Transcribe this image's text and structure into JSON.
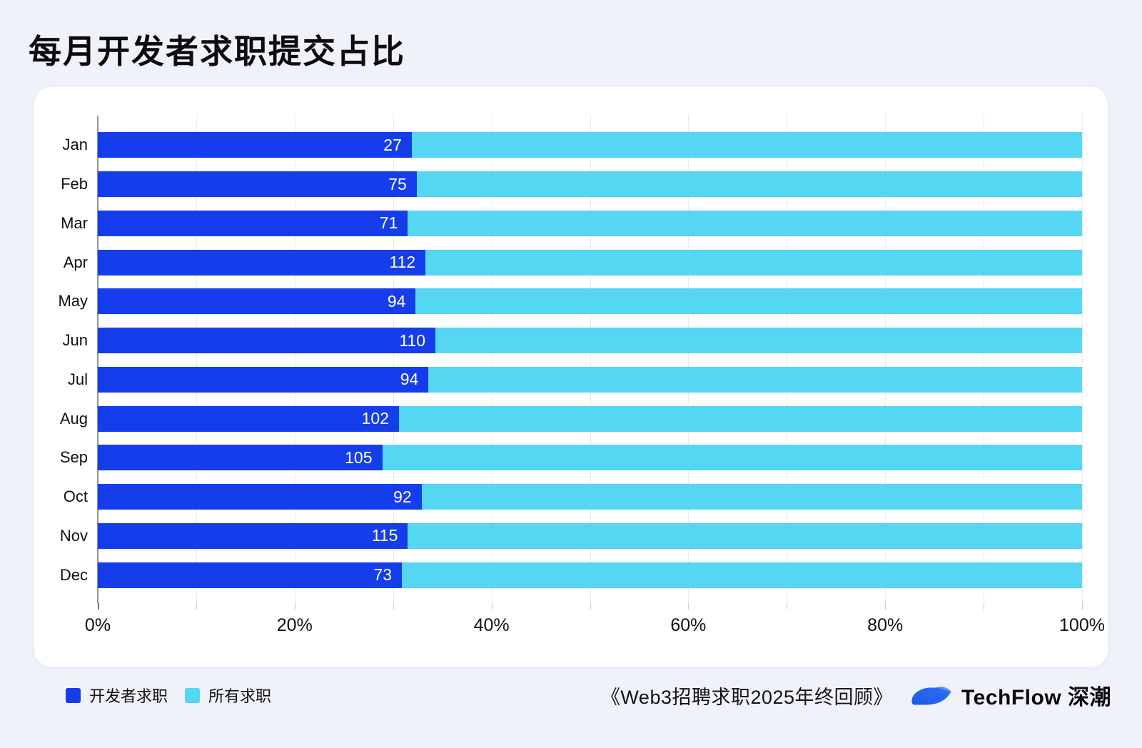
{
  "page": {
    "title": "每月开发者求职提交占比",
    "background_color": "#f0f2f9",
    "card_color": "#ffffff"
  },
  "chart_data": {
    "type": "bar",
    "orientation": "horizontal",
    "stacked_to_100_percent": true,
    "title": "每月开发者求职提交占比",
    "categories": [
      "Jan",
      "Feb",
      "Mar",
      "Apr",
      "May",
      "Jun",
      "Jul",
      "Aug",
      "Sep",
      "Oct",
      "Nov",
      "Dec"
    ],
    "series": [
      {
        "name": "开发者求职",
        "color": "#163deb",
        "counts": [
          27,
          75,
          71,
          112,
          94,
          110,
          94,
          102,
          105,
          92,
          115,
          73
        ],
        "percent_of_total": [
          31.9,
          32.4,
          31.5,
          33.3,
          32.3,
          34.3,
          33.6,
          30.6,
          28.9,
          32.9,
          31.5,
          30.9
        ]
      },
      {
        "name": "所有求职",
        "color": "#55d6f2",
        "note": "remainder of each row up to 100%"
      }
    ],
    "bar_labels": "developer counts shown in white inside blue bars",
    "x_axis": {
      "range_percent": [
        0,
        100
      ],
      "tick_labels": [
        "0%",
        "20%",
        "40%",
        "60%",
        "80%",
        "100%"
      ],
      "tick_label_step_percent": 20,
      "gridline_step_percent": 10,
      "grid": true
    },
    "legend_position": "bottom-left"
  },
  "legend": {
    "items": [
      {
        "label": "开发者求职",
        "color": "#163deb"
      },
      {
        "label": "所有求职",
        "color": "#55d6f2"
      }
    ]
  },
  "footer": {
    "source": "《Web3招聘求职2025年终回顾》",
    "brand": "TechFlow 深潮",
    "logo_colors": {
      "body": "#1d5ae8",
      "body_light": "#2f6ef5",
      "tip": "#5a93f7"
    }
  },
  "colors": {
    "grid_line": "#e9ebee",
    "axis_line": "#8f939b",
    "text": "#0e0e10",
    "bar_value_text": "#ffffff"
  }
}
